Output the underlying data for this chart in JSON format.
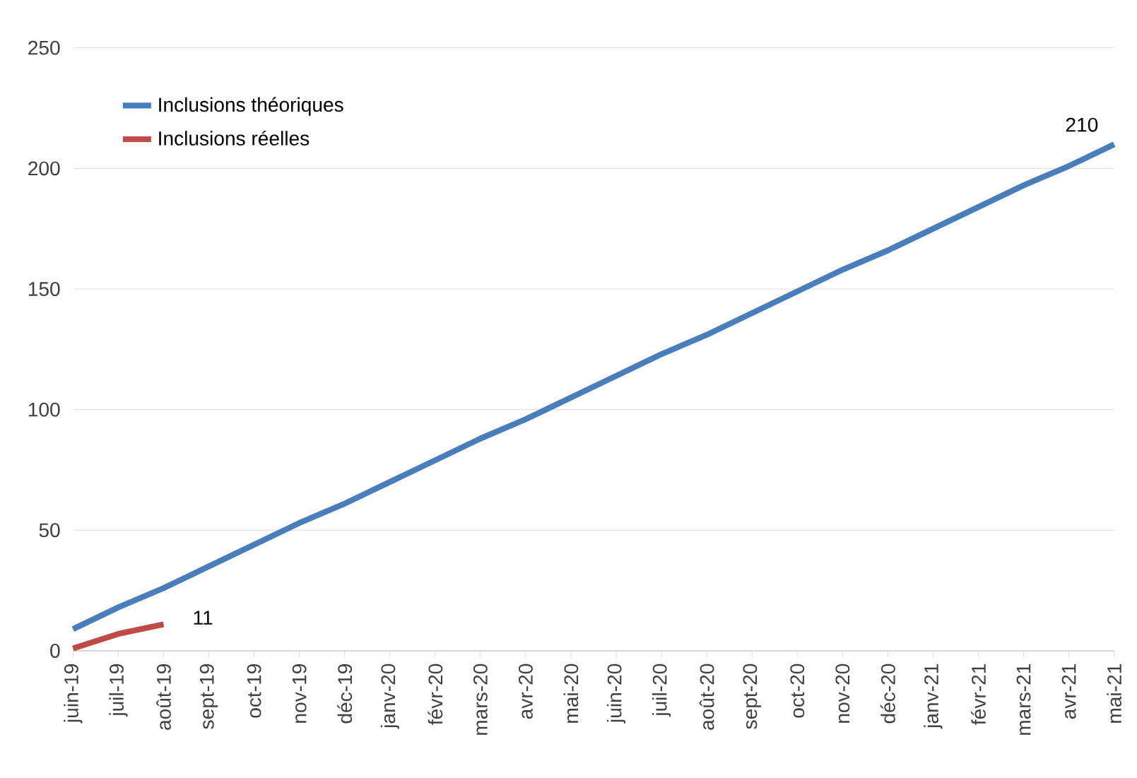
{
  "chart_data": {
    "type": "line",
    "categories": [
      "juin-19",
      "juil-19",
      "août-19",
      "sept-19",
      "oct-19",
      "nov-19",
      "déc-19",
      "janv-20",
      "févr-20",
      "mars-20",
      "avr-20",
      "mai-20",
      "juin-20",
      "juil-20",
      "août-20",
      "sept-20",
      "oct-20",
      "nov-20",
      "déc-20",
      "janv-21",
      "févr-21",
      "mars-21",
      "avr-21",
      "mai-21"
    ],
    "series": [
      {
        "name": "Inclusions théoriques",
        "color": "#4a7ebb",
        "values": [
          9,
          18,
          26,
          35,
          44,
          53,
          61,
          70,
          79,
          88,
          96,
          105,
          114,
          123,
          131,
          140,
          149,
          158,
          166,
          175,
          184,
          193,
          201,
          210
        ],
        "value_labels": [
          null,
          null,
          null,
          null,
          null,
          null,
          null,
          null,
          null,
          null,
          null,
          null,
          null,
          null,
          null,
          null,
          null,
          null,
          null,
          null,
          null,
          null,
          null,
          "210"
        ]
      },
      {
        "name": "Inclusions réelles",
        "color": "#be4b48",
        "values": [
          1,
          7,
          11,
          null,
          null,
          null,
          null,
          null,
          null,
          null,
          null,
          null,
          null,
          null,
          null,
          null,
          null,
          null,
          null,
          null,
          null,
          null,
          null,
          null
        ],
        "value_labels": [
          null,
          null,
          "11",
          null,
          null,
          null,
          null,
          null,
          null,
          null,
          null,
          null,
          null,
          null,
          null,
          null,
          null,
          null,
          null,
          null,
          null,
          null,
          null,
          null
        ]
      }
    ],
    "ylim": [
      0,
      250
    ],
    "yticks": [
      0,
      50,
      100,
      150,
      200,
      250
    ],
    "grid": "y",
    "legend": "top left"
  }
}
